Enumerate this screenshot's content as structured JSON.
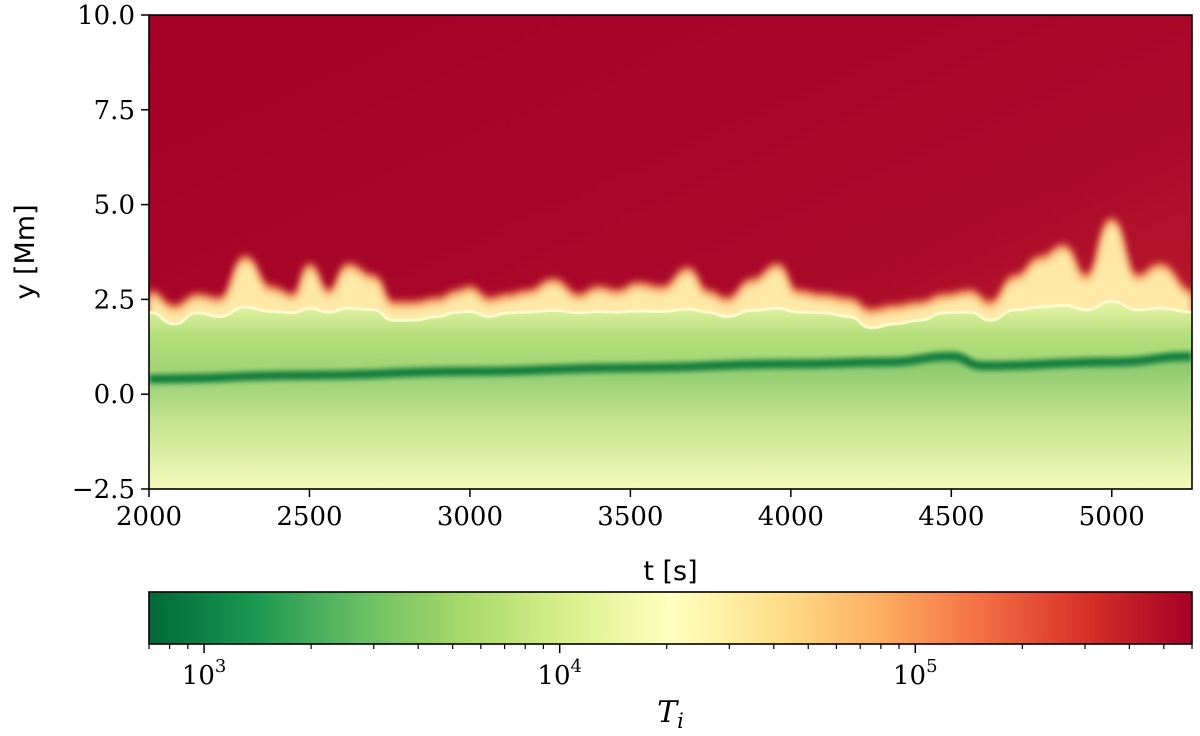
{
  "chart_data": {
    "type": "heatmap",
    "xlabel": "t [s]",
    "ylabel": "y [Mm]",
    "xlim": [
      2000,
      5250
    ],
    "ylim": [
      -2.5,
      10.0
    ],
    "xticks": [
      2000,
      2500,
      3000,
      3500,
      4000,
      4500,
      5000
    ],
    "xtick_labels": [
      "2000",
      "2500",
      "3000",
      "3500",
      "4000",
      "4500",
      "5000"
    ],
    "yticks": [
      -2.5,
      0.0,
      2.5,
      5.0,
      7.5,
      10.0
    ],
    "ytick_labels": [
      "−2.5",
      "0.0",
      "2.5",
      "5.0",
      "7.5",
      "10.0"
    ],
    "grid": false,
    "colormap": "RdYlGn_r",
    "colorbar": {
      "orientation": "horizontal",
      "scale": "log",
      "label_base": "T",
      "label_sub": "i",
      "range": [
        700,
        600000
      ],
      "major_ticks": [
        {
          "value": 1000,
          "base": "10",
          "exp": "3"
        },
        {
          "value": 10000,
          "base": "10",
          "exp": "4"
        },
        {
          "value": 100000,
          "base": "10",
          "exp": "5"
        }
      ]
    },
    "series": [
      {
        "description_values": "transition region height (y in Mm) vs time",
        "x": [
          2000,
          2080,
          2150,
          2220,
          2300,
          2380,
          2450,
          2500,
          2560,
          2620,
          2700,
          2760,
          2820,
          2900,
          2960,
          3000,
          3060,
          3120,
          3180,
          3260,
          3340,
          3400,
          3460,
          3520,
          3600,
          3680,
          3740,
          3800,
          3880,
          3960,
          4020,
          4100,
          4180,
          4250,
          4320,
          4400,
          4480,
          4560,
          4620,
          4700,
          4780,
          4850,
          4920,
          5000,
          5080,
          5150,
          5250
        ],
        "y": [
          2.6,
          2.2,
          2.5,
          2.4,
          3.5,
          2.7,
          2.5,
          3.3,
          2.6,
          3.3,
          3.0,
          2.3,
          2.3,
          2.4,
          2.6,
          2.7,
          2.4,
          2.5,
          2.6,
          2.9,
          2.5,
          2.7,
          2.6,
          2.8,
          2.7,
          3.2,
          2.6,
          2.4,
          2.9,
          3.3,
          2.6,
          2.5,
          2.4,
          2.1,
          2.2,
          2.3,
          2.5,
          2.6,
          2.3,
          3.0,
          3.5,
          3.8,
          3.0,
          4.5,
          3.0,
          3.3,
          2.6
        ]
      },
      {
        "description_values": "cool dense band height (y in Mm) vs time",
        "x": [
          2000,
          2500,
          3000,
          3500,
          4000,
          4300,
          4500,
          4600,
          5000,
          5250
        ],
        "y": [
          0.4,
          0.5,
          0.6,
          0.7,
          0.8,
          0.85,
          1.0,
          0.75,
          0.85,
          1.0
        ]
      }
    ]
  }
}
